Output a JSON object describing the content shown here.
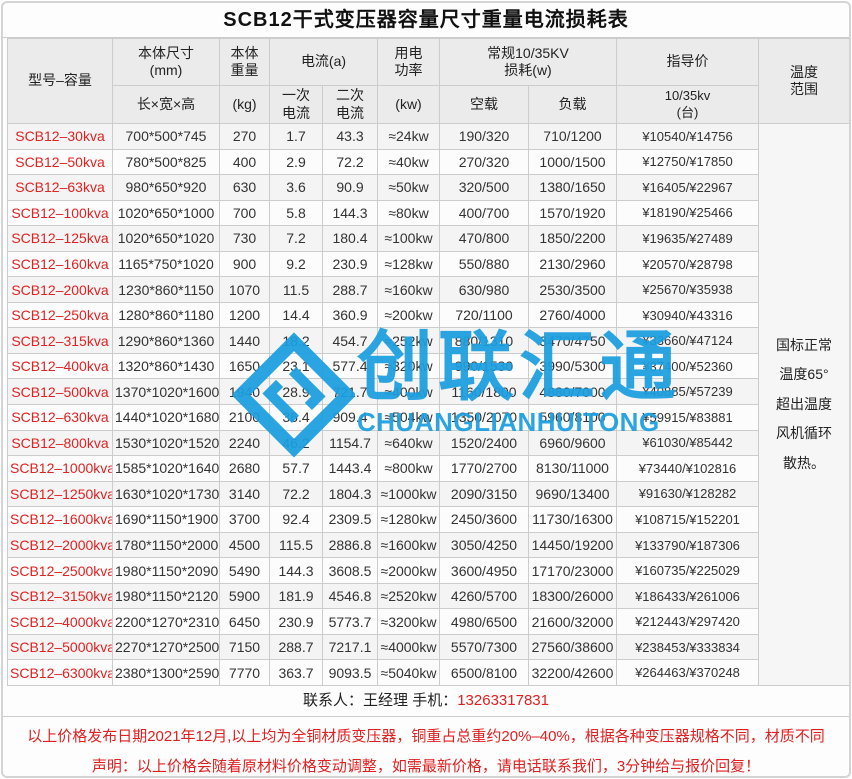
{
  "title": "SCB12干式变压器容量尺寸重量电流损耗表",
  "header": {
    "model": "型号–容量",
    "size": "本体尺寸\n(mm)",
    "size_sub": "长×宽×高",
    "weight": "本体\n重量",
    "weight_sub": "(kg)",
    "current_group": "电流(a)",
    "current_primary": "一次\n电流",
    "current_secondary": "二次\n电流",
    "power": "用电\n功率",
    "power_sub": "(kw)",
    "loss_group": "常规10/35KV\n损耗(w)",
    "loss_noload": "空载",
    "loss_load": "负载",
    "price": "指导价",
    "price_sub": "10/35kv\n(台)",
    "temperature": "温度\n范围"
  },
  "rows": [
    {
      "model": "SCB12–30kva",
      "size": "700*500*745",
      "weight": "270",
      "i1": "1.7",
      "i2": "43.3",
      "power": "≈24kw",
      "no_load": "190/320",
      "load": "710/1200",
      "price": "¥10540/¥14756"
    },
    {
      "model": "SCB12–50kva",
      "size": "780*500*825",
      "weight": "400",
      "i1": "2.9",
      "i2": "72.2",
      "power": "≈40kw",
      "no_load": "270/320",
      "load": "1000/1500",
      "price": "¥12750/¥17850"
    },
    {
      "model": "SCB12–63kva",
      "size": "980*650*920",
      "weight": "630",
      "i1": "3.6",
      "i2": "90.9",
      "power": "≈50kw",
      "no_load": "320/500",
      "load": "1380/1650",
      "price": "¥16405/¥22967"
    },
    {
      "model": "SCB12–100kva",
      "size": "1020*650*1000",
      "weight": "700",
      "i1": "5.8",
      "i2": "144.3",
      "power": "≈80kw",
      "no_load": "400/700",
      "load": "1570/1920",
      "price": "¥18190/¥25466"
    },
    {
      "model": "SCB12–125kva",
      "size": "1020*650*1020",
      "weight": "730",
      "i1": "7.2",
      "i2": "180.4",
      "power": "≈100kw",
      "no_load": "470/800",
      "load": "1850/2200",
      "price": "¥19635/¥27489"
    },
    {
      "model": "SCB12–160kva",
      "size": "1165*750*1020",
      "weight": "900",
      "i1": "9.2",
      "i2": "230.9",
      "power": "≈128kw",
      "no_load": "550/880",
      "load": "2130/2960",
      "price": "¥20570/¥28798"
    },
    {
      "model": "SCB12–200kva",
      "size": "1230*860*1150",
      "weight": "1070",
      "i1": "11.5",
      "i2": "288.7",
      "power": "≈160kw",
      "no_load": "630/980",
      "load": "2530/3500",
      "price": "¥25670/¥35938"
    },
    {
      "model": "SCB12–250kva",
      "size": "1280*860*1180",
      "weight": "1200",
      "i1": "14.4",
      "i2": "360.9",
      "power": "≈200kw",
      "no_load": "720/1100",
      "load": "2760/4000",
      "price": "¥30940/¥43316"
    },
    {
      "model": "SCB12–315kva",
      "size": "1290*860*1360",
      "weight": "1440",
      "i1": "18.2",
      "i2": "454.7",
      "power": "≈252kw",
      "no_load": "880/1310",
      "load": "3470/4750",
      "price": "¥33660/¥47124"
    },
    {
      "model": "SCB12–400kva",
      "size": "1320*860*1430",
      "weight": "1650",
      "i1": "23.1",
      "i2": "577.4",
      "power": "≈320kw",
      "no_load": "990/1530",
      "load": "3990/5300",
      "price": "¥37400/¥52360"
    },
    {
      "model": "SCB12–500kva",
      "size": "1370*1020*1600",
      "weight": "1940",
      "i1": "28.9",
      "i2": "721.7",
      "power": "≈400kw",
      "no_load": "1160/1800",
      "load": "4880/7000",
      "price": "¥40885/¥57239"
    },
    {
      "model": "SCB12–630kva",
      "size": "1440*1020*1680",
      "weight": "2100",
      "i1": "36.4",
      "i2": "909.4",
      "power": "≈504kw",
      "no_load": "1350/2070",
      "load": "5960/8100",
      "price": "¥59915/¥83881"
    },
    {
      "model": "SCB12–800kva",
      "size": "1530*1020*1520",
      "weight": "2240",
      "i1": "46.2",
      "i2": "1154.7",
      "power": "≈640kw",
      "no_load": "1520/2400",
      "load": "6960/9600",
      "price": "¥61030/¥85442"
    },
    {
      "model": "SCB12–1000kva",
      "size": "1585*1020*1640",
      "weight": "2680",
      "i1": "57.7",
      "i2": "1443.4",
      "power": "≈800kw",
      "no_load": "1770/2700",
      "load": "8130/11000",
      "price": "¥73440/¥102816"
    },
    {
      "model": "SCB12–1250kva",
      "size": "1630*1020*1730",
      "weight": "3140",
      "i1": "72.2",
      "i2": "1804.3",
      "power": "≈1000kw",
      "no_load": "2090/3150",
      "load": "9690/13400",
      "price": "¥91630/¥128282"
    },
    {
      "model": "SCB12–1600kva",
      "size": "1690*1150*1900",
      "weight": "3700",
      "i1": "92.4",
      "i2": "2309.5",
      "power": "≈1280kw",
      "no_load": "2450/3600",
      "load": "11730/16300",
      "price": "¥108715/¥152201"
    },
    {
      "model": "SCB12–2000kva",
      "size": "1780*1150*2000",
      "weight": "4500",
      "i1": "115.5",
      "i2": "2886.8",
      "power": "≈1600kw",
      "no_load": "3050/4250",
      "load": "14450/19200",
      "price": "¥133790/¥187306"
    },
    {
      "model": "SCB12–2500kva",
      "size": "1980*1150*2090",
      "weight": "5490",
      "i1": "144.3",
      "i2": "3608.5",
      "power": "≈2000kw",
      "no_load": "3600/4950",
      "load": "17170/23000",
      "price": "¥160735/¥225029"
    },
    {
      "model": "SCB12–3150kva",
      "size": "1980*1150*2120",
      "weight": "5900",
      "i1": "181.9",
      "i2": "4546.8",
      "power": "≈2520kw",
      "no_load": "4260/5700",
      "load": "18300/26000",
      "price": "¥186433/¥261006"
    },
    {
      "model": "SCB12–4000kva",
      "size": "2200*1270*2310",
      "weight": "6450",
      "i1": "230.9",
      "i2": "5773.7",
      "power": "≈3200kw",
      "no_load": "4980/6500",
      "load": "21600/32000",
      "price": "¥212443/¥297420"
    },
    {
      "model": "SCB12–5000kva",
      "size": "2270*1270*2500",
      "weight": "7150",
      "i1": "288.7",
      "i2": "7217.1",
      "power": "≈4000kw",
      "no_load": "5570/7300",
      "load": "27560/38600",
      "price": "¥238453/¥333834"
    },
    {
      "model": "SCB12–6300kva",
      "size": "2380*1300*2590",
      "weight": "7770",
      "i1": "363.7",
      "i2": "9093.5",
      "power": "≈5040kw",
      "no_load": "6500/8100",
      "load": "32200/42600",
      "price": "¥264463/¥370248"
    }
  ],
  "temperature_note": "国标正常\n温度65°\n超出温度\n风机循环\n散热。",
  "contact": {
    "label": "联系人：王经理  手机：",
    "phone": "13263317831"
  },
  "footer": {
    "line1": "以上价格发布日期2021年12月,以上均为全铜材质变压器，铜重占总重约20%–40%，根据各种变压器规格不同，材质不同",
    "line2": "声明：以上价格会随着原材料价格变动调整，如需最新价格，请电话联系我们，3分钟给与报价回复！"
  },
  "watermark": {
    "cn": "创联汇通",
    "en": "CHUANGLIANHUITONG",
    "color": "#1b9fe0"
  },
  "colors": {
    "accent_red": "#e02222",
    "header_bg": "#ebebeb",
    "border": "#cccccc",
    "watermark_blue": "#1b9fe0"
  }
}
